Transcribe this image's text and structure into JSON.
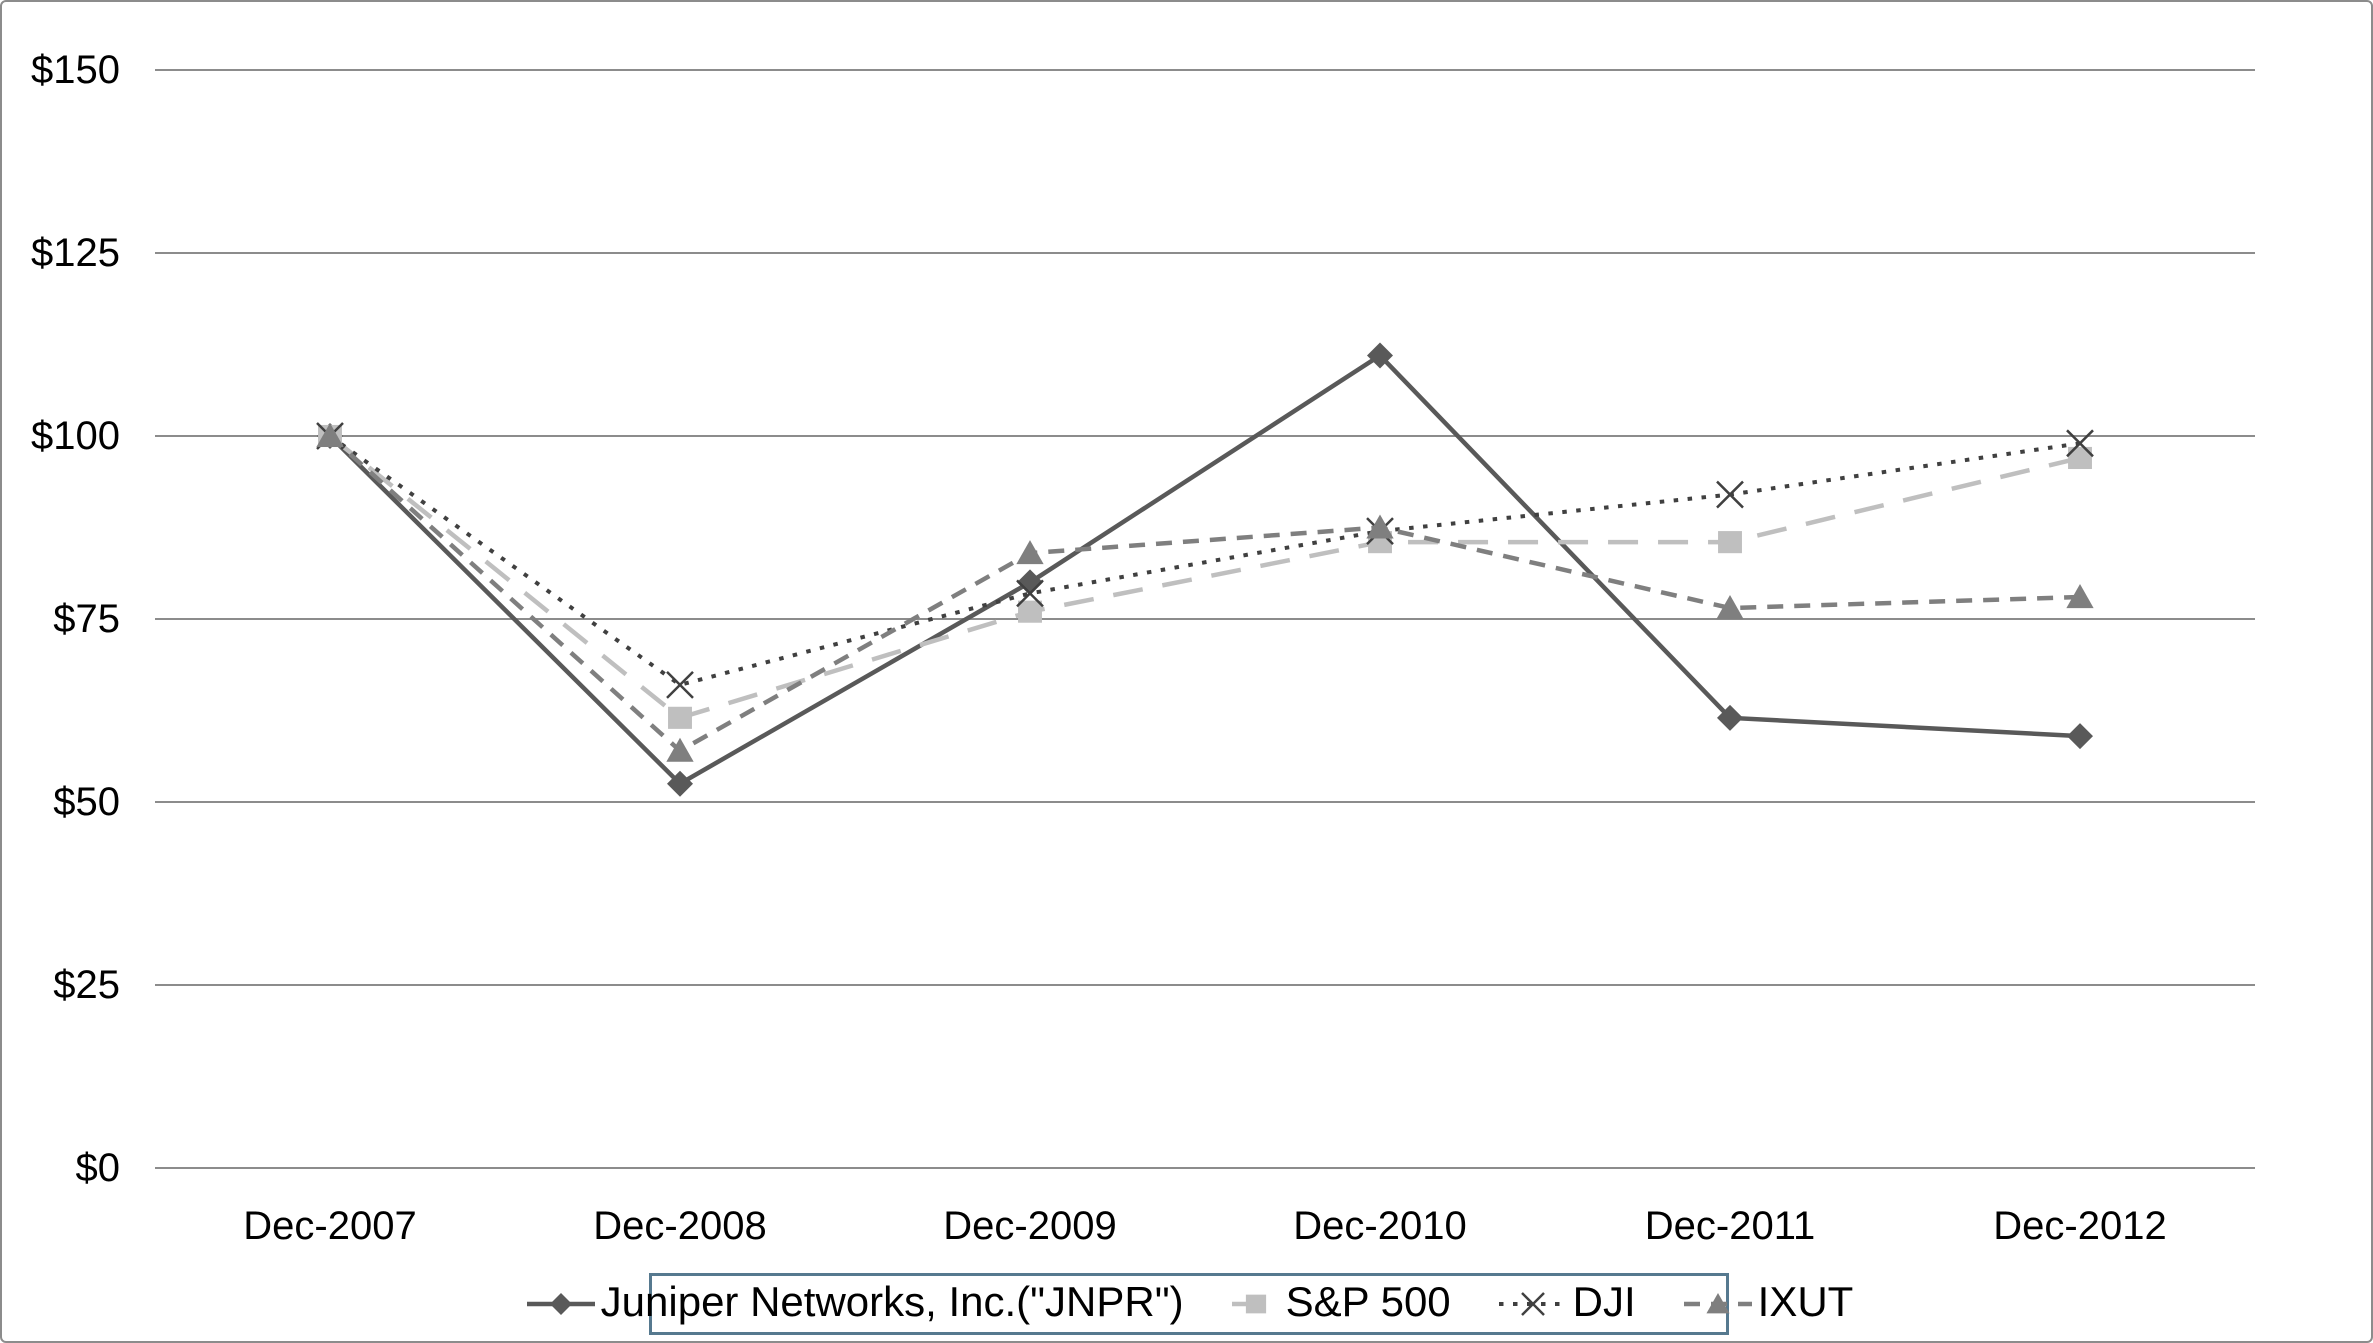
{
  "chart_data": {
    "type": "line",
    "title": "",
    "xlabel": "",
    "ylabel": "",
    "categories": [
      "Dec-2007",
      "Dec-2008",
      "Dec-2009",
      "Dec-2010",
      "Dec-2011",
      "Dec-2012"
    ],
    "series": [
      {
        "name": "Juniper Networks, Inc.(\"JNPR\")",
        "values": [
          100,
          52.5,
          80,
          111,
          61.5,
          59
        ],
        "color": "#595959",
        "line_style": "solid",
        "marker": "diamond"
      },
      {
        "name": "S&P 500",
        "values": [
          100,
          61.5,
          76,
          85.5,
          85.5,
          97
        ],
        "color": "#bfbfbf",
        "line_style": "long-dash",
        "marker": "square"
      },
      {
        "name": "DJI",
        "values": [
          100,
          66,
          78.5,
          87,
          92,
          99
        ],
        "color": "#404040",
        "line_style": "dotted",
        "marker": "x-cross"
      },
      {
        "name": "IXUT",
        "values": [
          100,
          57,
          84,
          87.5,
          76.5,
          78
        ],
        "color": "#7f7f7f",
        "line_style": "dash",
        "marker": "triangle"
      }
    ],
    "ylim": [
      0,
      150
    ],
    "y_ticks": [
      {
        "value": 0,
        "label": "$0"
      },
      {
        "value": 25,
        "label": "$25"
      },
      {
        "value": 50,
        "label": "$50"
      },
      {
        "value": 75,
        "label": "$75"
      },
      {
        "value": 100,
        "label": "$100"
      },
      {
        "value": 125,
        "label": "$125"
      },
      {
        "value": 150,
        "label": "$150"
      }
    ],
    "grid": true,
    "legend_position": "bottom",
    "colors": {
      "gridline": "#8c8c8c",
      "frame_border": "#8c8c8c",
      "legend_border": "#56798f",
      "text": "#000000",
      "background": "#ffffff"
    }
  }
}
